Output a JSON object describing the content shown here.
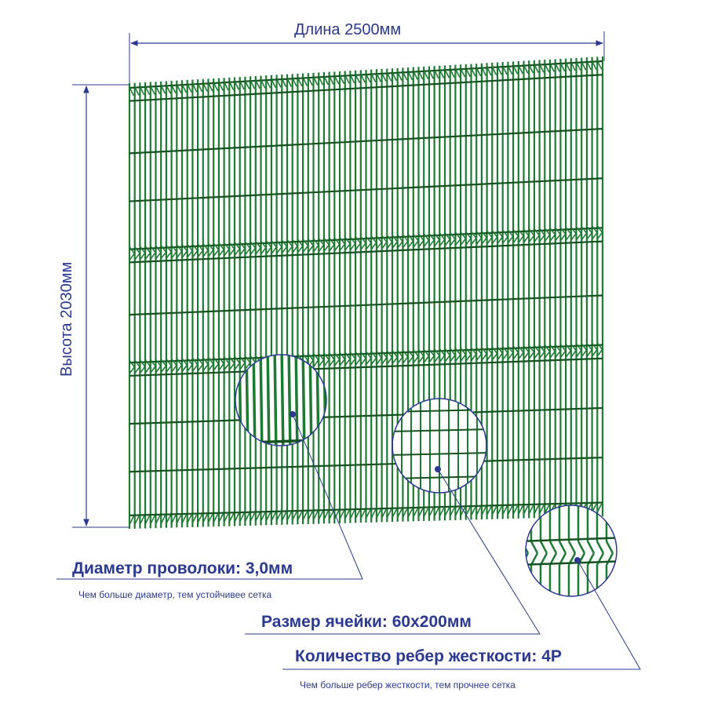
{
  "dimensions": {
    "length": "Длина 2500мм",
    "height": "Высота 2030мм"
  },
  "specs": {
    "wire_diameter_title": "Диаметр проволоки: 3,0мм",
    "wire_diameter_note": "Чем больше диаметр, тем устойчивее сетка",
    "cell_size_title": "Размер ячейки: 60х200мм",
    "ribs_title": "Количество ребер жесткости: 4Р",
    "ribs_note": "Чем больше ребер жесткости, тем прочнее сетка"
  },
  "colors": {
    "mesh": "#1f7a33",
    "mesh_dark": "#14531f",
    "annotation": "#2b3990"
  }
}
